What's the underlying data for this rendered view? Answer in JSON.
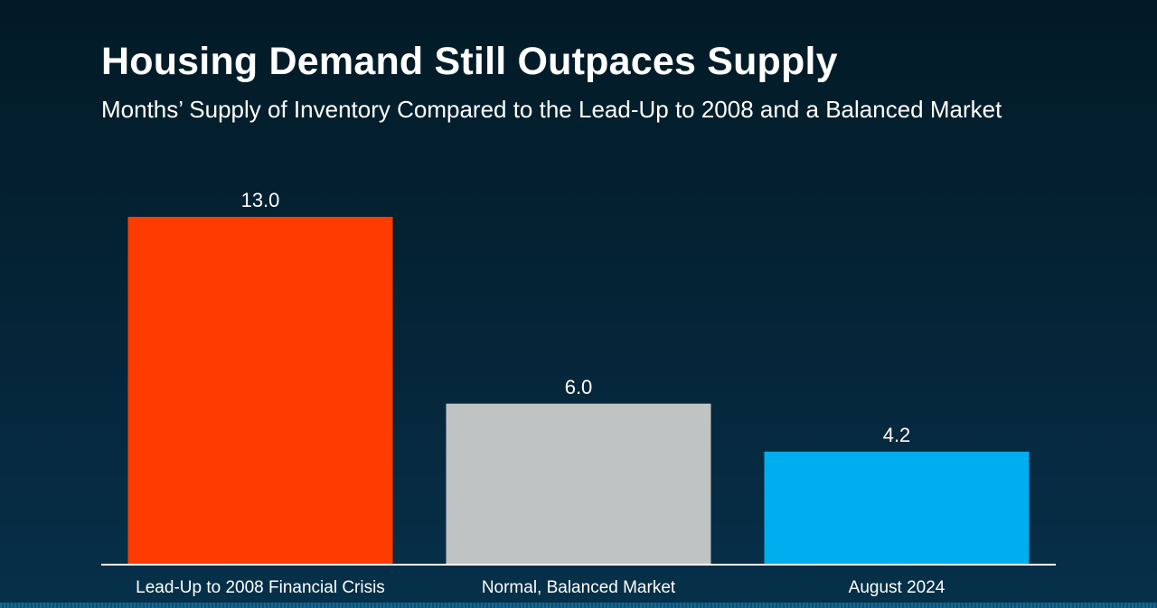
{
  "header": {
    "title": "Housing Demand Still Outpaces Supply",
    "subtitle": "Months’ Supply of Inventory Compared to the Lead-Up to 2008 and a Balanced Market"
  },
  "chart_data": {
    "type": "bar",
    "title": "Housing Demand Still Outpaces Supply",
    "subtitle": "Months’ Supply of Inventory Compared to the Lead-Up to 2008 and a Balanced Market",
    "categories": [
      "Lead-Up to 2008 Financial Crisis",
      "Normal, Balanced Market",
      "August 2024"
    ],
    "values": [
      13.0,
      6.0,
      4.2
    ],
    "value_labels": [
      "13.0",
      "6.0",
      "4.2"
    ],
    "colors": [
      "#ff3c00",
      "#bfc3c4",
      "#00aeef"
    ],
    "xlabel": "",
    "ylabel": "",
    "ylim": [
      0,
      13.0
    ],
    "grid": false,
    "legend": "none"
  }
}
